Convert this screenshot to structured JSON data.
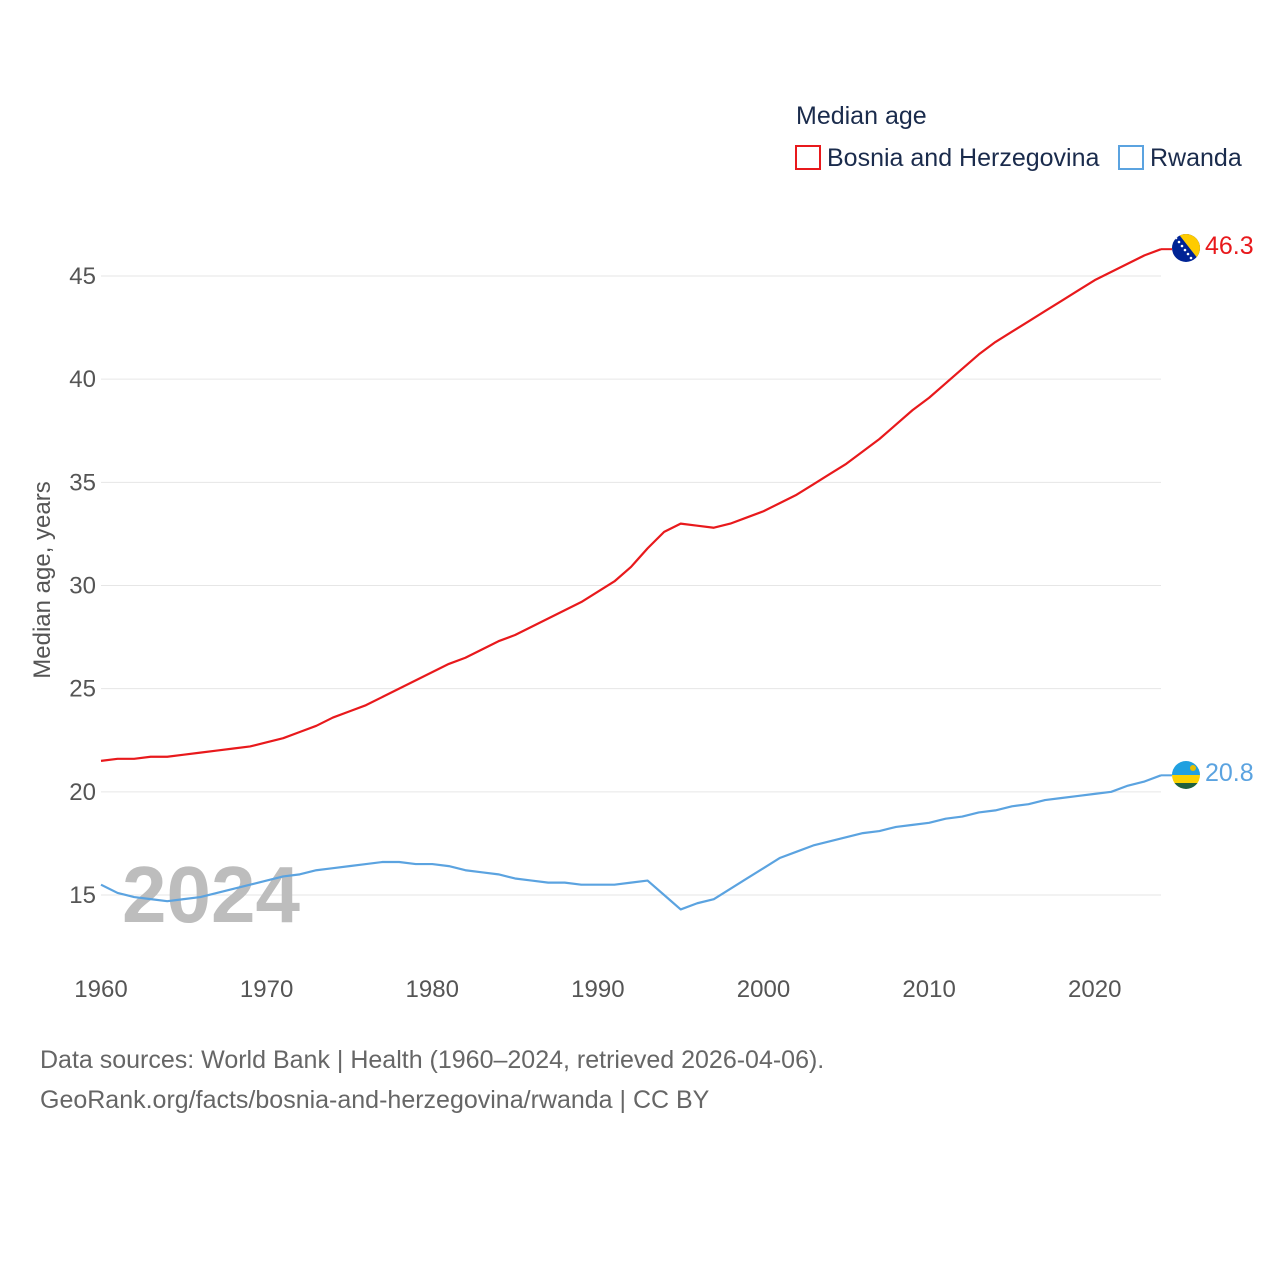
{
  "chart_data": {
    "type": "line",
    "title": "Median age",
    "ylabel": "Median age, years",
    "xlabel": "",
    "xlim": [
      1960,
      2024
    ],
    "ylim": [
      12.5,
      47.5
    ],
    "xticks": [
      1960,
      1970,
      1980,
      1990,
      2000,
      2010,
      2020
    ],
    "yticks": [
      15,
      20,
      25,
      30,
      35,
      40,
      45
    ],
    "grid": true,
    "legend_position": "top-right",
    "year_watermark": "2024",
    "x": [
      1960,
      1961,
      1962,
      1963,
      1964,
      1965,
      1966,
      1967,
      1968,
      1969,
      1970,
      1971,
      1972,
      1973,
      1974,
      1975,
      1976,
      1977,
      1978,
      1979,
      1980,
      1981,
      1982,
      1983,
      1984,
      1985,
      1986,
      1987,
      1988,
      1989,
      1990,
      1991,
      1992,
      1993,
      1994,
      1995,
      1996,
      1997,
      1998,
      1999,
      2000,
      2001,
      2002,
      2003,
      2004,
      2005,
      2006,
      2007,
      2008,
      2009,
      2010,
      2011,
      2012,
      2013,
      2014,
      2015,
      2016,
      2017,
      2018,
      2019,
      2020,
      2021,
      2022,
      2023,
      2024
    ],
    "series": [
      {
        "name": "Bosnia and Herzegovina",
        "color": "#e8191c",
        "end_label": "46.3",
        "values": [
          21.5,
          21.6,
          21.6,
          21.7,
          21.7,
          21.8,
          21.9,
          22.0,
          22.1,
          22.2,
          22.4,
          22.6,
          22.9,
          23.2,
          23.6,
          23.9,
          24.2,
          24.6,
          25.0,
          25.4,
          25.8,
          26.2,
          26.5,
          26.9,
          27.3,
          27.6,
          28.0,
          28.4,
          28.8,
          29.2,
          29.7,
          30.2,
          30.9,
          31.8,
          32.6,
          33.0,
          32.9,
          32.8,
          33.0,
          33.3,
          33.6,
          34.0,
          34.4,
          34.9,
          35.4,
          35.9,
          36.5,
          37.1,
          37.8,
          38.5,
          39.1,
          39.8,
          40.5,
          41.2,
          41.8,
          42.3,
          42.8,
          43.3,
          43.8,
          44.3,
          44.8,
          45.2,
          45.6,
          46.0,
          46.3
        ]
      },
      {
        "name": "Rwanda",
        "color": "#5ba3e0",
        "end_label": "20.8",
        "values": [
          15.5,
          15.1,
          14.9,
          14.8,
          14.7,
          14.8,
          14.9,
          15.1,
          15.3,
          15.5,
          15.7,
          15.9,
          16.0,
          16.2,
          16.3,
          16.4,
          16.5,
          16.6,
          16.6,
          16.5,
          16.5,
          16.4,
          16.2,
          16.1,
          16.0,
          15.8,
          15.7,
          15.6,
          15.6,
          15.5,
          15.5,
          15.5,
          15.6,
          15.7,
          15.0,
          14.3,
          14.6,
          14.8,
          15.3,
          15.8,
          16.3,
          16.8,
          17.1,
          17.4,
          17.6,
          17.8,
          18.0,
          18.1,
          18.3,
          18.4,
          18.5,
          18.7,
          18.8,
          19.0,
          19.1,
          19.3,
          19.4,
          19.6,
          19.7,
          19.8,
          19.9,
          20.0,
          20.3,
          20.5,
          20.8
        ]
      }
    ]
  },
  "legend": {
    "title": "Median age"
  },
  "footer": {
    "line1": "Data sources: World Bank | Health (1960–2024, retrieved 2026-04-06).",
    "line2": "GeoRank.org/facts/bosnia-and-herzegovina/rwanda | CC BY"
  }
}
